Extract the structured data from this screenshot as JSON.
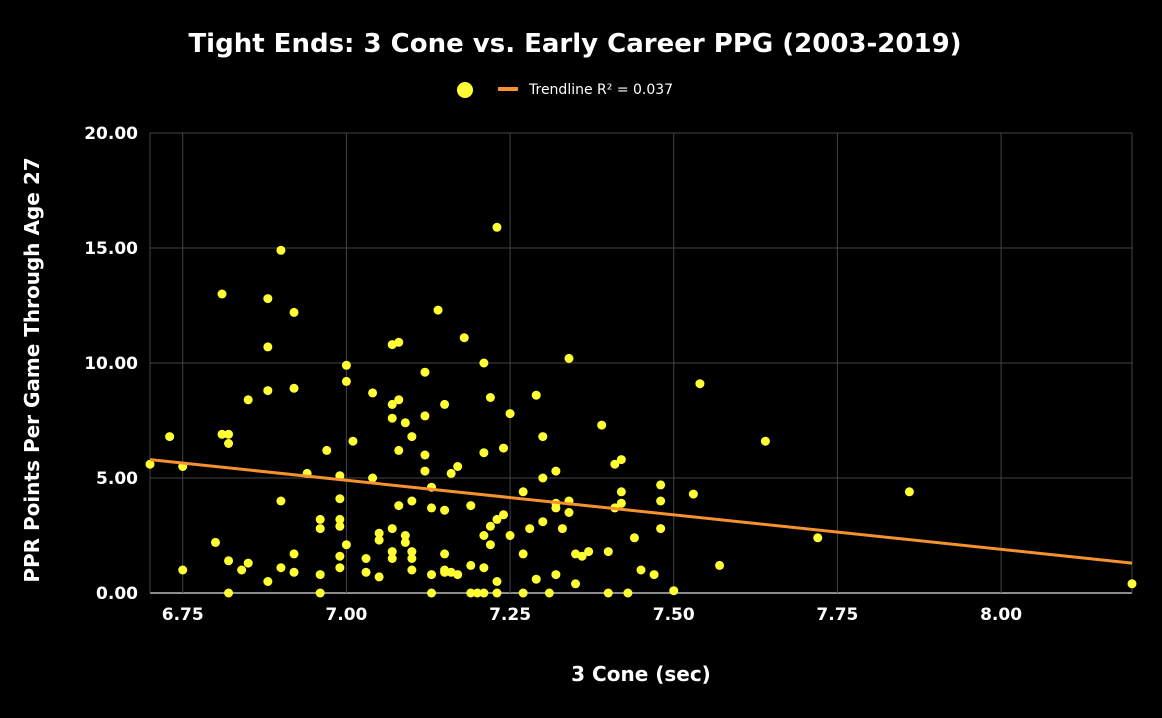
{
  "chart_data": {
    "type": "scatter",
    "title": "Tight Ends: 3 Cone vs. Early Career PPG (2003-2019)",
    "xlabel": "3 Cone (sec)",
    "ylabel": "PPR Points Per Game Through Age 27",
    "xlim": [
      6.7,
      8.2
    ],
    "ylim": [
      0,
      20
    ],
    "x_ticks": [
      "6.75",
      "7.00",
      "7.25",
      "7.50",
      "7.75",
      "8.00"
    ],
    "y_ticks": [
      "0.00",
      "5.00",
      "10.00",
      "15.00",
      "20.00"
    ],
    "grid": true,
    "legend_position": "top-center",
    "colors": {
      "background": "#000000",
      "points": "#ffff33",
      "trendline": "#f5922f",
      "grid": "#444444",
      "text": "#ffffff"
    },
    "series": [
      {
        "type": "scatter",
        "points": [
          [
            6.7,
            5.6
          ],
          [
            6.73,
            6.8
          ],
          [
            6.75,
            5.5
          ],
          [
            6.75,
            1.0
          ],
          [
            6.8,
            2.2
          ],
          [
            6.81,
            13.0
          ],
          [
            6.81,
            6.9
          ],
          [
            6.82,
            6.9
          ],
          [
            6.82,
            6.5
          ],
          [
            6.82,
            1.4
          ],
          [
            6.82,
            0.0
          ],
          [
            6.84,
            1.0
          ],
          [
            6.85,
            8.4
          ],
          [
            6.85,
            1.3
          ],
          [
            6.88,
            12.8
          ],
          [
            6.88,
            10.7
          ],
          [
            6.88,
            8.8
          ],
          [
            6.88,
            0.5
          ],
          [
            6.9,
            14.9
          ],
          [
            6.9,
            4.0
          ],
          [
            6.9,
            1.1
          ],
          [
            6.92,
            12.2
          ],
          [
            6.92,
            8.9
          ],
          [
            6.92,
            1.7
          ],
          [
            6.92,
            0.9
          ],
          [
            6.94,
            5.2
          ],
          [
            6.96,
            3.2
          ],
          [
            6.96,
            2.8
          ],
          [
            6.96,
            0.8
          ],
          [
            6.96,
            0.0
          ],
          [
            6.97,
            6.2
          ],
          [
            6.99,
            5.1
          ],
          [
            6.99,
            4.1
          ],
          [
            6.99,
            3.2
          ],
          [
            6.99,
            2.9
          ],
          [
            6.99,
            1.6
          ],
          [
            6.99,
            1.1
          ],
          [
            7.0,
            9.9
          ],
          [
            7.0,
            9.2
          ],
          [
            7.0,
            2.1
          ],
          [
            7.01,
            6.6
          ],
          [
            7.03,
            1.5
          ],
          [
            7.03,
            0.9
          ],
          [
            7.04,
            8.7
          ],
          [
            7.04,
            5.0
          ],
          [
            7.05,
            2.6
          ],
          [
            7.05,
            2.3
          ],
          [
            7.05,
            0.7
          ],
          [
            7.07,
            10.8
          ],
          [
            7.07,
            8.2
          ],
          [
            7.07,
            7.6
          ],
          [
            7.07,
            2.8
          ],
          [
            7.07,
            1.8
          ],
          [
            7.07,
            1.5
          ],
          [
            7.08,
            10.9
          ],
          [
            7.08,
            8.4
          ],
          [
            7.08,
            6.2
          ],
          [
            7.08,
            3.8
          ],
          [
            7.09,
            7.4
          ],
          [
            7.09,
            2.5
          ],
          [
            7.09,
            2.2
          ],
          [
            7.1,
            6.8
          ],
          [
            7.1,
            4.0
          ],
          [
            7.1,
            1.8
          ],
          [
            7.1,
            1.5
          ],
          [
            7.1,
            1.0
          ],
          [
            7.12,
            9.6
          ],
          [
            7.12,
            7.7
          ],
          [
            7.12,
            6.0
          ],
          [
            7.12,
            5.3
          ],
          [
            7.13,
            4.6
          ],
          [
            7.13,
            3.7
          ],
          [
            7.13,
            0.8
          ],
          [
            7.13,
            0.0
          ],
          [
            7.14,
            12.3
          ],
          [
            7.15,
            8.2
          ],
          [
            7.15,
            3.6
          ],
          [
            7.15,
            1.7
          ],
          [
            7.15,
            1.0
          ],
          [
            7.15,
            0.9
          ],
          [
            7.16,
            5.2
          ],
          [
            7.16,
            0.9
          ],
          [
            7.17,
            5.5
          ],
          [
            7.17,
            0.8
          ],
          [
            7.18,
            11.1
          ],
          [
            7.19,
            3.8
          ],
          [
            7.19,
            1.2
          ],
          [
            7.19,
            0.0
          ],
          [
            7.2,
            0.0
          ],
          [
            7.21,
            10.0
          ],
          [
            7.21,
            6.1
          ],
          [
            7.21,
            2.5
          ],
          [
            7.21,
            1.1
          ],
          [
            7.21,
            0.0
          ],
          [
            7.22,
            8.5
          ],
          [
            7.22,
            2.9
          ],
          [
            7.22,
            2.1
          ],
          [
            7.23,
            15.9
          ],
          [
            7.23,
            3.2
          ],
          [
            7.23,
            0.5
          ],
          [
            7.23,
            0.0
          ],
          [
            7.24,
            6.3
          ],
          [
            7.24,
            3.4
          ],
          [
            7.25,
            7.8
          ],
          [
            7.25,
            2.5
          ],
          [
            7.27,
            4.4
          ],
          [
            7.27,
            1.7
          ],
          [
            7.27,
            0.0
          ],
          [
            7.28,
            2.8
          ],
          [
            7.29,
            8.6
          ],
          [
            7.29,
            0.6
          ],
          [
            7.3,
            6.8
          ],
          [
            7.3,
            5.0
          ],
          [
            7.3,
            3.1
          ],
          [
            7.31,
            0.0
          ],
          [
            7.32,
            5.3
          ],
          [
            7.32,
            3.9
          ],
          [
            7.32,
            3.7
          ],
          [
            7.32,
            0.8
          ],
          [
            7.33,
            2.8
          ],
          [
            7.34,
            10.2
          ],
          [
            7.34,
            4.0
          ],
          [
            7.34,
            3.5
          ],
          [
            7.35,
            1.7
          ],
          [
            7.35,
            0.4
          ],
          [
            7.36,
            1.6
          ],
          [
            7.37,
            1.8
          ],
          [
            7.39,
            7.3
          ],
          [
            7.4,
            1.8
          ],
          [
            7.4,
            0.0
          ],
          [
            7.41,
            5.6
          ],
          [
            7.41,
            3.7
          ],
          [
            7.42,
            5.8
          ],
          [
            7.42,
            4.4
          ],
          [
            7.42,
            3.9
          ],
          [
            7.43,
            0.0
          ],
          [
            7.44,
            2.4
          ],
          [
            7.45,
            1.0
          ],
          [
            7.47,
            0.8
          ],
          [
            7.48,
            4.7
          ],
          [
            7.48,
            4.0
          ],
          [
            7.48,
            2.8
          ],
          [
            7.5,
            0.1
          ],
          [
            7.53,
            4.3
          ],
          [
            7.54,
            9.1
          ],
          [
            7.57,
            1.2
          ],
          [
            7.64,
            6.6
          ],
          [
            7.72,
            2.4
          ],
          [
            7.86,
            4.4
          ],
          [
            8.2,
            0.4
          ]
        ]
      },
      {
        "type": "line",
        "name": "Trendline R² = 0.037",
        "from": [
          6.7,
          5.8
        ],
        "to": [
          8.2,
          1.3
        ]
      }
    ]
  }
}
